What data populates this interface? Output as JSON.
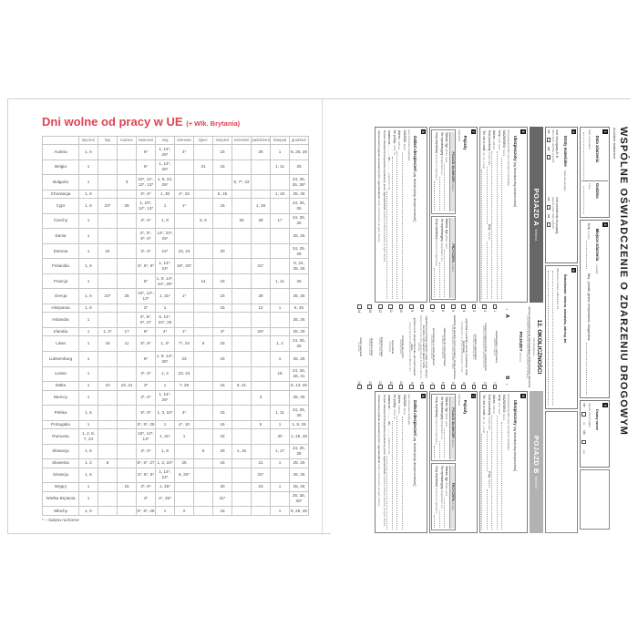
{
  "left_page": {
    "title": "Dni wolne od pracy w UE",
    "title_suffix": "(+ Wlk. Brytania)",
    "footnote": "* – święta ruchome",
    "table": {
      "months": [
        "styczeń",
        "luty",
        "marzec",
        "kwiecień",
        "maj",
        "czerwiec",
        "lipiec",
        "sierpień",
        "wrzesień",
        "październik",
        "listopad",
        "grudzień"
      ],
      "rows": [
        {
          "country": "Austria",
          "cells": [
            "1, 6",
            "",
            "",
            "6*",
            "1, 14*, 25*",
            "4*",
            "",
            "15",
            "",
            "26",
            "1",
            "8, 25, 26"
          ]
        },
        {
          "country": "Belgia",
          "cells": [
            "1",
            "",
            "",
            "6*",
            "1, 14*, 25*",
            "",
            "21",
            "15",
            "",
            "",
            "1, 11",
            "25"
          ]
        },
        {
          "country": "Bułgaria",
          "cells": [
            "1",
            "",
            "3",
            "10*, 11*, 12*, 13*",
            "1, 6, 24, 25*",
            "",
            "",
            "",
            "6, 7*, 22",
            "",
            "",
            "24, 25, 26, 28*"
          ]
        },
        {
          "country": "Chorwacja",
          "cells": [
            "1, 6",
            "",
            "",
            "5*, 6*",
            "1, 30",
            "4*, 22",
            "",
            "5, 15",
            "",
            "",
            "1, 18",
            "25, 26"
          ]
        },
        {
          "country": "Cypr",
          "cells": [
            "1, 6",
            "23*",
            "25",
            "1, 10*, 12*, 13*",
            "1",
            "1*",
            "",
            "15",
            "",
            "1, 28",
            "",
            "24, 25, 26"
          ]
        },
        {
          "country": "Czechy",
          "cells": [
            "1",
            "",
            "",
            "3*, 6*",
            "1, 8",
            "",
            "5, 6",
            "",
            "28",
            "28",
            "17",
            "24, 25, 26"
          ]
        },
        {
          "country": "Dania",
          "cells": [
            "1",
            "",
            "",
            "2*, 3*, 5*, 6*",
            "14*, 24*, 25*",
            "",
            "",
            "",
            "",
            "",
            "",
            "25, 26"
          ]
        },
        {
          "country": "Estonia",
          "cells": [
            "1",
            "24",
            "",
            "3*, 5*",
            "24*",
            "23, 24",
            "",
            "20",
            "",
            "",
            "",
            "24, 25, 26"
          ]
        },
        {
          "country": "Finlandia",
          "cells": [
            "1, 6",
            "",
            "",
            "3*, 5*, 6*",
            "1, 14*, 24*",
            "19*, 20*",
            "",
            "",
            "",
            "31*",
            "",
            "6, 24, 25, 26"
          ]
        },
        {
          "country": "Francja",
          "cells": [
            "1",
            "",
            "",
            "6*",
            "1, 8, 14*, 24*, 25*",
            "",
            "14",
            "15",
            "",
            "",
            "1, 11",
            "25"
          ]
        },
        {
          "country": "Grecja",
          "cells": [
            "1, 6",
            "23*",
            "25",
            "10*, 12*, 13*",
            "1, 31*",
            "1*",
            "",
            "15",
            "",
            "28",
            "",
            "25, 26"
          ]
        },
        {
          "country": "Hiszpania",
          "cells": [
            "1, 6",
            "",
            "",
            "3*",
            "1",
            "",
            "",
            "15",
            "",
            "12",
            "1",
            "6, 25"
          ]
        },
        {
          "country": "Holandia",
          "cells": [
            "1",
            "",
            "",
            "3*, 5*, 6*, 27",
            "5, 14*, 24*, 25",
            "",
            "",
            "",
            "",
            "",
            "",
            "25, 26"
          ]
        },
        {
          "country": "Irlandia",
          "cells": [
            "1",
            "1, 2*",
            "17",
            "6*",
            "4*",
            "1*",
            "",
            "3*",
            "",
            "26*",
            "",
            "25, 26"
          ]
        },
        {
          "country": "Litwa",
          "cells": [
            "1",
            "16",
            "11",
            "5*, 6*",
            "1, 3*",
            "7*, 24",
            "6",
            "15",
            "",
            "",
            "1, 2",
            "24, 25, 26"
          ]
        },
        {
          "country": "Luksemburg",
          "cells": [
            "1",
            "",
            "",
            "6*",
            "1, 9, 14*, 25*",
            "23",
            "",
            "15",
            "",
            "",
            "1",
            "25, 26"
          ]
        },
        {
          "country": "Łotwa",
          "cells": [
            "1",
            "",
            "",
            "3*, 6*",
            "1, 4",
            "23, 24",
            "",
            "",
            "",
            "",
            "18",
            "24, 25, 26, 31"
          ]
        },
        {
          "country": "Malta",
          "cells": [
            "1",
            "10",
            "19, 31",
            "3*",
            "1",
            "7, 29",
            "",
            "15",
            "8, 21",
            "",
            "",
            "8, 13, 25"
          ]
        },
        {
          "country": "Niemcy",
          "cells": [
            "1",
            "",
            "",
            "3*, 6*",
            "1, 14*, 25*",
            "",
            "",
            "",
            "",
            "3",
            "",
            "25, 26"
          ]
        },
        {
          "country": "Polska",
          "cells": [
            "1, 6",
            "",
            "",
            "5*, 6*",
            "1, 3, 24*",
            "4*",
            "",
            "15",
            "",
            "",
            "1, 11",
            "24, 25, 26"
          ]
        },
        {
          "country": "Portugalia",
          "cells": [
            "1",
            "",
            "",
            "3*, 5*, 25",
            "1",
            "4*, 10",
            "",
            "15",
            "",
            "5",
            "1",
            "1, 8, 25"
          ]
        },
        {
          "country": "Rumunia",
          "cells": [
            "1, 2, 6, 7, 24",
            "",
            "",
            "10*, 12*, 13*",
            "1, 31*",
            "1",
            "",
            "15",
            "",
            "",
            "30",
            "1, 25, 26"
          ]
        },
        {
          "country": "Słowacja",
          "cells": [
            "1, 6",
            "",
            "",
            "3*, 6*",
            "1, 8",
            "",
            "5",
            "29",
            "1, 15",
            "",
            "1, 17",
            "24, 25, 26"
          ]
        },
        {
          "country": "Słowenia",
          "cells": [
            "1, 2",
            "8",
            "",
            "5*, 6*, 27",
            "1, 2, 24*",
            "25",
            "",
            "15",
            "",
            "31",
            "1",
            "25, 26"
          ]
        },
        {
          "country": "Szwecja",
          "cells": [
            "1, 6",
            "",
            "",
            "3*, 5*, 6*",
            "1, 14*, 24*",
            "6, 20*",
            "",
            "",
            "",
            "31*",
            "",
            "25, 26"
          ]
        },
        {
          "country": "Węgry",
          "cells": [
            "1",
            "",
            "15",
            "3*, 6*",
            "1, 25*",
            "",
            "",
            "20",
            "",
            "23",
            "1",
            "25, 26"
          ]
        },
        {
          "country": "Wielka Brytania",
          "cells": [
            "1",
            "",
            "",
            "3*",
            "4*, 25*",
            "",
            "",
            "31*",
            "",
            "",
            "",
            "25, 26, 28*"
          ]
        },
        {
          "country": "Włochy",
          "cells": [
            "1, 6",
            "",
            "",
            "5*, 6*, 25",
            "1",
            "2",
            "",
            "15",
            "",
            "",
            "1",
            "8, 25, 26"
          ]
        }
      ]
    }
  },
  "right_page": {
    "form": {
      "title": "WSPÓLNE OŚWIADCZENIE O ZDARZENIU DROGOWYM",
      "subtitle": "Accident statement",
      "s1": {
        "badge": "1",
        "label": "Data zdarzenia",
        "sub": "Date of accident",
        "time_label": "Godzina",
        "time_sub": "Time"
      },
      "s2": {
        "badge": "2",
        "label": "Miejsce zdarzenia",
        "sub": "Locality",
        "country": "Kraj:",
        "country_sub": "Country",
        "place": "Woj., powiat, gmina, miejscowość, droga/ulica:",
        "place_sub": "Place"
      },
      "s3": {
        "badge": "3",
        "label": "Osoby ranne",
        "sub": "Injured even if slight",
        "no": "nie",
        "no_sub": "no",
        "yes": "tak",
        "yes_sub": "yes"
      },
      "s4": {
        "badge": "4",
        "label": "Straty materialne",
        "sub": "Material damage",
        "opt1": "inne niż pojazdy A i B",
        "opt1_sub": "other than vehicles A and B",
        "opt2": "inne przedmioty niż pojazdy",
        "opt2_sub": "objects other than vehicles",
        "no": "nie",
        "yes": "tak"
      },
      "s5": {
        "badge": "5",
        "label": "Świadkowie: imiona, nazwiska, adresy, tel.",
        "sub": "Witnesses: names, addresses, tel."
      },
      "vehicle_a": {
        "header": "POJAZD A",
        "header_sub": "Vehicle A"
      },
      "vehicle_b": {
        "header": "POJAZD B",
        "header_sub": "Vehicle B"
      },
      "vehicle_sections": {
        "s6": {
          "badge": "6",
          "title": "Ubezpieczony",
          "bracket": "[wg 'dowodu/polisy ubezpieczenia']",
          "sub": "Insured/policyholder (see insurance certificate)",
          "fields": [
            {
              "pl": "NAZWISKO:",
              "en": "Name"
            },
            {
              "pl": "Imię:",
              "en": "First name"
            },
            {
              "pl": "Adres:",
              "en": "Address"
            },
            {
              "pl": "Kod pocztowy:",
              "en": "Postal code"
            },
            {
              "pl": "Tel. lub e-mail:",
              "en": "Tel. no., e-mail"
            }
          ],
          "country": "Kraj:",
          "country_sub": "Country"
        },
        "s7": {
          "badge": "7",
          "title": "Pojazdy",
          "sub": "(Vehicles)",
          "motor": "POJAZD SILNIKOWY",
          "motor_sub": "(Motor)",
          "trailer": "PRZYCZEPA",
          "trailer_sub": "(Trailer)",
          "fields": [
            {
              "pl": "Marka, typ",
              "en": "(Make, type)"
            },
            {
              "pl": "Nr rejestracyjny",
              "en": "(Registration no.)"
            },
            {
              "pl": "Kraj rejestracji",
              "en": "(Country of registration)"
            }
          ]
        },
        "s8": {
          "badge": "8",
          "title": "Zakład ubezpieczeń",
          "bracket": "[wg 'dowodu/polisy ubezpieczeniowej']",
          "sub": "(see insurance certificate)",
          "fields": [
            {
              "pl": "NAZWA:",
              "en": "Name"
            },
            {
              "pl": "Adres:",
              "en": "Address"
            },
            {
              "pl": "Nr polisy:",
              "en": "Policy no."
            },
            {
              "pl": "ważna od ............ do ............",
              "en": "(valid from / to)"
            }
          ],
          "lines": [
            {
              "pl": "Dowód ubezpieczeniowy/polisa wystawiony przez 'agenta/oddział'",
              "en": "Insurance certificate issued by an agent / bureau"
            },
            {
              "pl": "Zielona Karta pojazdu wystawiona przez 'agenta/oddział'",
              "en": "Green Card issued by an agent / bureau"
            }
          ]
        }
      },
      "circumstances": {
        "title": "12. OKOLICZNOŚCI",
        "sub": "Circumstances",
        "instruction": "zaznacz krzyżykiem pola odpowiadające okolicznościom zdarzenia",
        "instruction_sub": "cross each of the relevant boxes to help explain the drawing",
        "vehicles_label": "POJAZDY",
        "vehicles_sub": "Vehicles",
        "col_a": "A",
        "col_b": "B",
        "arrow_down": "↓",
        "items": [
          {
            "n": "1",
            "pl": "zaparkowany / zatrzymany",
            "en": "parked / stopped"
          },
          {
            "n": "2",
            "pl": "ruszał z miejsca postoju / otwierał drzwi",
            "en": "leaving a parking place / opening the door"
          },
          {
            "n": "3",
            "pl": "w trakcie parkowania",
            "en": "entering a parking place"
          },
          {
            "n": "4",
            "pl": "wyjeżdżał z parkingu, terenu prywatnego, drogi gruntowej",
            "en": "emerging from a car park, private grounds, a track"
          },
          {
            "n": "5",
            "pl": "wjeżdżał na parking, teren prywatny, drogę gruntową",
            "en": "entering a car park, private grounds, a track"
          },
          {
            "n": "6",
            "pl": "włączał się do ruchu okrężnego",
            "en": "entering a roundabout"
          },
          {
            "n": "7",
            "pl": "poruszał się w ruchu okrężnym",
            "en": "circulating a roundabout"
          },
          {
            "n": "8",
            "pl": "najechał na tył innego pojazdu, jadąc w tym samym kierunku i tym samym pasem ruchu",
            "en": "striking the rear of the other vehicle going in the same direction and lane"
          },
          {
            "n": "9",
            "pl": "jechał w tym samym kierunku, ale innym pasem ruchu",
            "en": "going in the same direction but in a different lane"
          },
          {
            "n": "10",
            "pl": "zmieniał pas ruchu",
            "en": "changing lanes"
          },
          {
            "n": "11",
            "pl": "wyprzedzał",
            "en": "overtaking"
          },
          {
            "n": "12",
            "pl": "skręcał w prawo",
            "en": "turning to the right"
          },
          {
            "n": "13",
            "pl": "skręcał w lewo",
            "en": "turning to the left"
          },
          {
            "n": "14",
            "pl": "cofał / zawracał",
            "en": "reversing"
          }
        ]
      }
    }
  },
  "colors": {
    "accent_red": "#dc4453",
    "bar_a": "#676767",
    "bar_b": "#b2b2b2"
  }
}
